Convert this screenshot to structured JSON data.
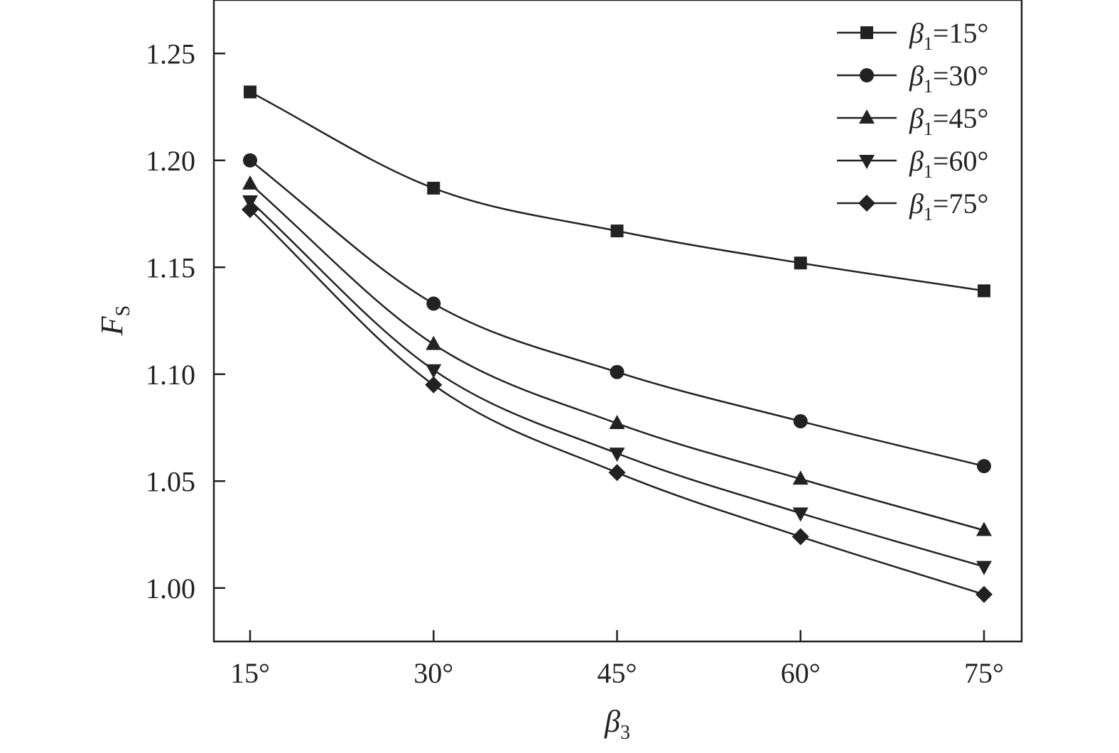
{
  "chart_data": {
    "type": "line",
    "x_values": [
      15,
      30,
      45,
      60,
      75
    ],
    "categories": [
      "15°",
      "30°",
      "45°",
      "60°",
      "75°"
    ],
    "xlabel": {
      "symbol": "β",
      "subscript": "3"
    },
    "ylabel": {
      "symbol": "F",
      "subscript": "S"
    },
    "ylim": [
      0.975,
      1.275
    ],
    "yticks": [
      "1.00",
      "1.05",
      "1.10",
      "1.15",
      "1.20",
      "1.25"
    ],
    "ytick_values": [
      1.0,
      1.05,
      1.1,
      1.15,
      1.2,
      1.25
    ],
    "legend_position": "top-right",
    "series": [
      {
        "symbol": "β",
        "subscript": "1",
        "suffix": "=15°",
        "marker": "square",
        "values": [
          1.232,
          1.187,
          1.167,
          1.152,
          1.139
        ]
      },
      {
        "symbol": "β",
        "subscript": "1",
        "suffix": "=30°",
        "marker": "circle",
        "values": [
          1.2,
          1.133,
          1.101,
          1.078,
          1.057
        ]
      },
      {
        "symbol": "β",
        "subscript": "1",
        "suffix": "=45°",
        "marker": "triangle-up",
        "values": [
          1.189,
          1.114,
          1.077,
          1.051,
          1.027
        ]
      },
      {
        "symbol": "β",
        "subscript": "1",
        "suffix": "=60°",
        "marker": "triangle-down",
        "values": [
          1.181,
          1.102,
          1.063,
          1.035,
          1.01
        ]
      },
      {
        "symbol": "β",
        "subscript": "1",
        "suffix": "=75°",
        "marker": "diamond",
        "values": [
          1.177,
          1.095,
          1.054,
          1.024,
          0.997
        ]
      }
    ],
    "colors": {
      "line": "#222222",
      "background": "#ffffff"
    }
  }
}
